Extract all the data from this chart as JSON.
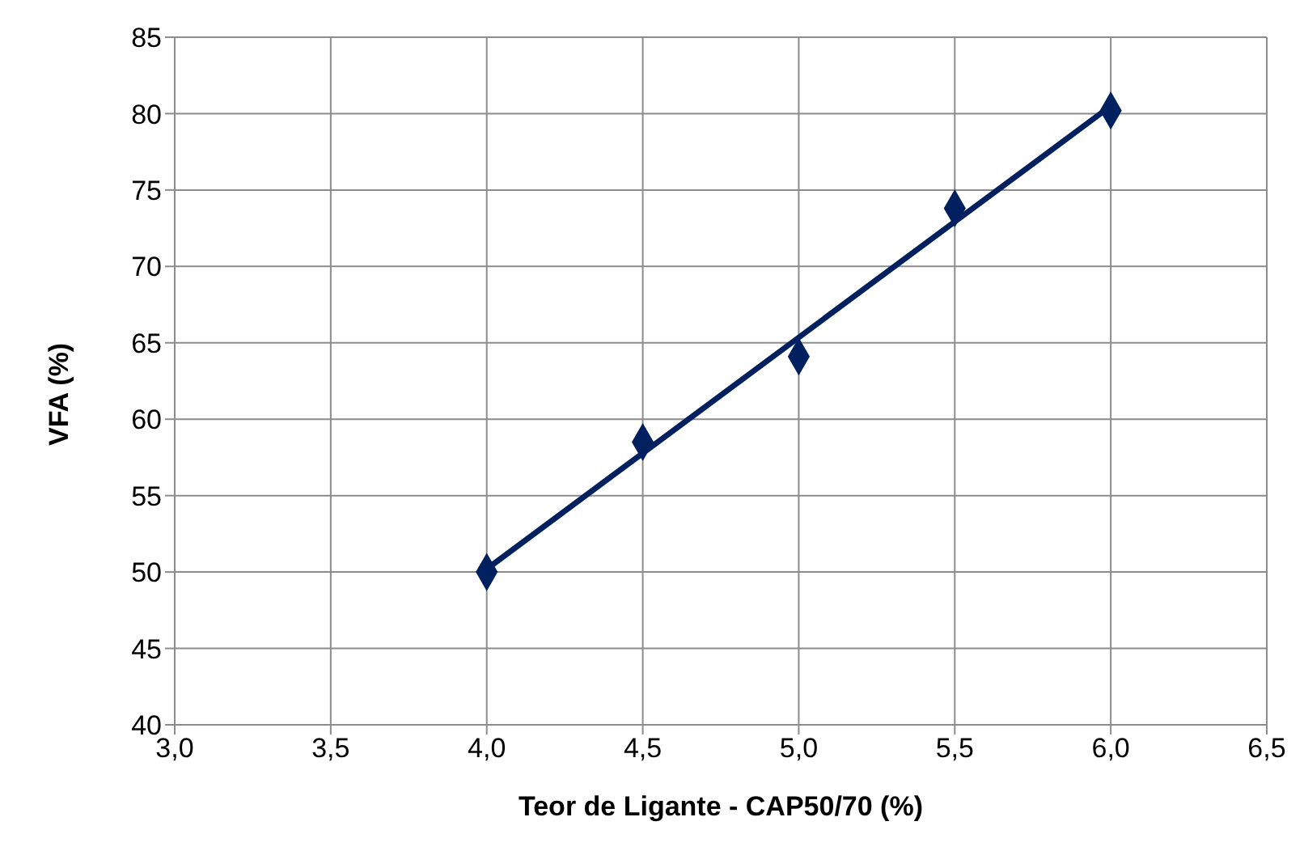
{
  "chart_data": {
    "type": "scatter",
    "xlabel": "Teor de Ligante - CAP50/70 (%)",
    "ylabel": "VFA (%)",
    "xlim": [
      3,
      6.5
    ],
    "xticks": [
      {
        "value": 3,
        "label": "3,0"
      },
      {
        "value": 3.5,
        "label": "3,5"
      },
      {
        "value": 4,
        "label": "4,0"
      },
      {
        "value": 4.5,
        "label": "4,5"
      },
      {
        "value": 5,
        "label": "5,0"
      },
      {
        "value": 5.5,
        "label": "5,5"
      },
      {
        "value": 6,
        "label": "6,0"
      },
      {
        "value": 6.5,
        "label": "6,5"
      }
    ],
    "ylim": [
      40,
      85
    ],
    "yticks": [
      40,
      45,
      50,
      55,
      60,
      65,
      70,
      75,
      80,
      85
    ],
    "grid": true,
    "series": [
      {
        "type": "line",
        "color": "#002060",
        "x": [
          4,
          6
        ],
        "values": [
          50.2,
          80.5
        ],
        "marker": "none",
        "line_style": "solid"
      },
      {
        "color": "#002060",
        "x": [
          4,
          4.5,
          5,
          5.5,
          6
        ],
        "values": [
          50,
          58.5,
          64.1,
          73.8,
          80.2
        ],
        "marker": "diamond"
      }
    ]
  }
}
